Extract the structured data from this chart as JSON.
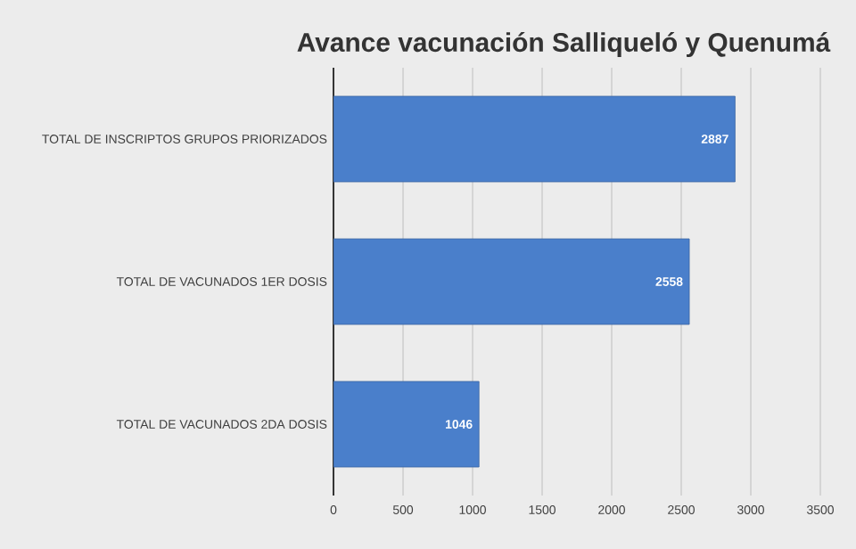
{
  "chart_data": {
    "type": "bar",
    "orientation": "horizontal",
    "title": "Avance vacunación Salliqueló y Quenumá",
    "categories": [
      "TOTAL DE INSCRIPTOS GRUPOS PRIORIZADOS",
      "TOTAL DE VACUNADOS 1ER DOSIS",
      "TOTAL DE VACUNADOS 2DA DOSIS"
    ],
    "values": [
      2887,
      2558,
      1046
    ],
    "color": "#4a7fcb",
    "xlim": [
      0,
      3500
    ],
    "xticks": [
      0,
      500,
      1000,
      1500,
      2000,
      2500,
      3000,
      3500
    ],
    "grid": "x",
    "data_labels": true
  }
}
